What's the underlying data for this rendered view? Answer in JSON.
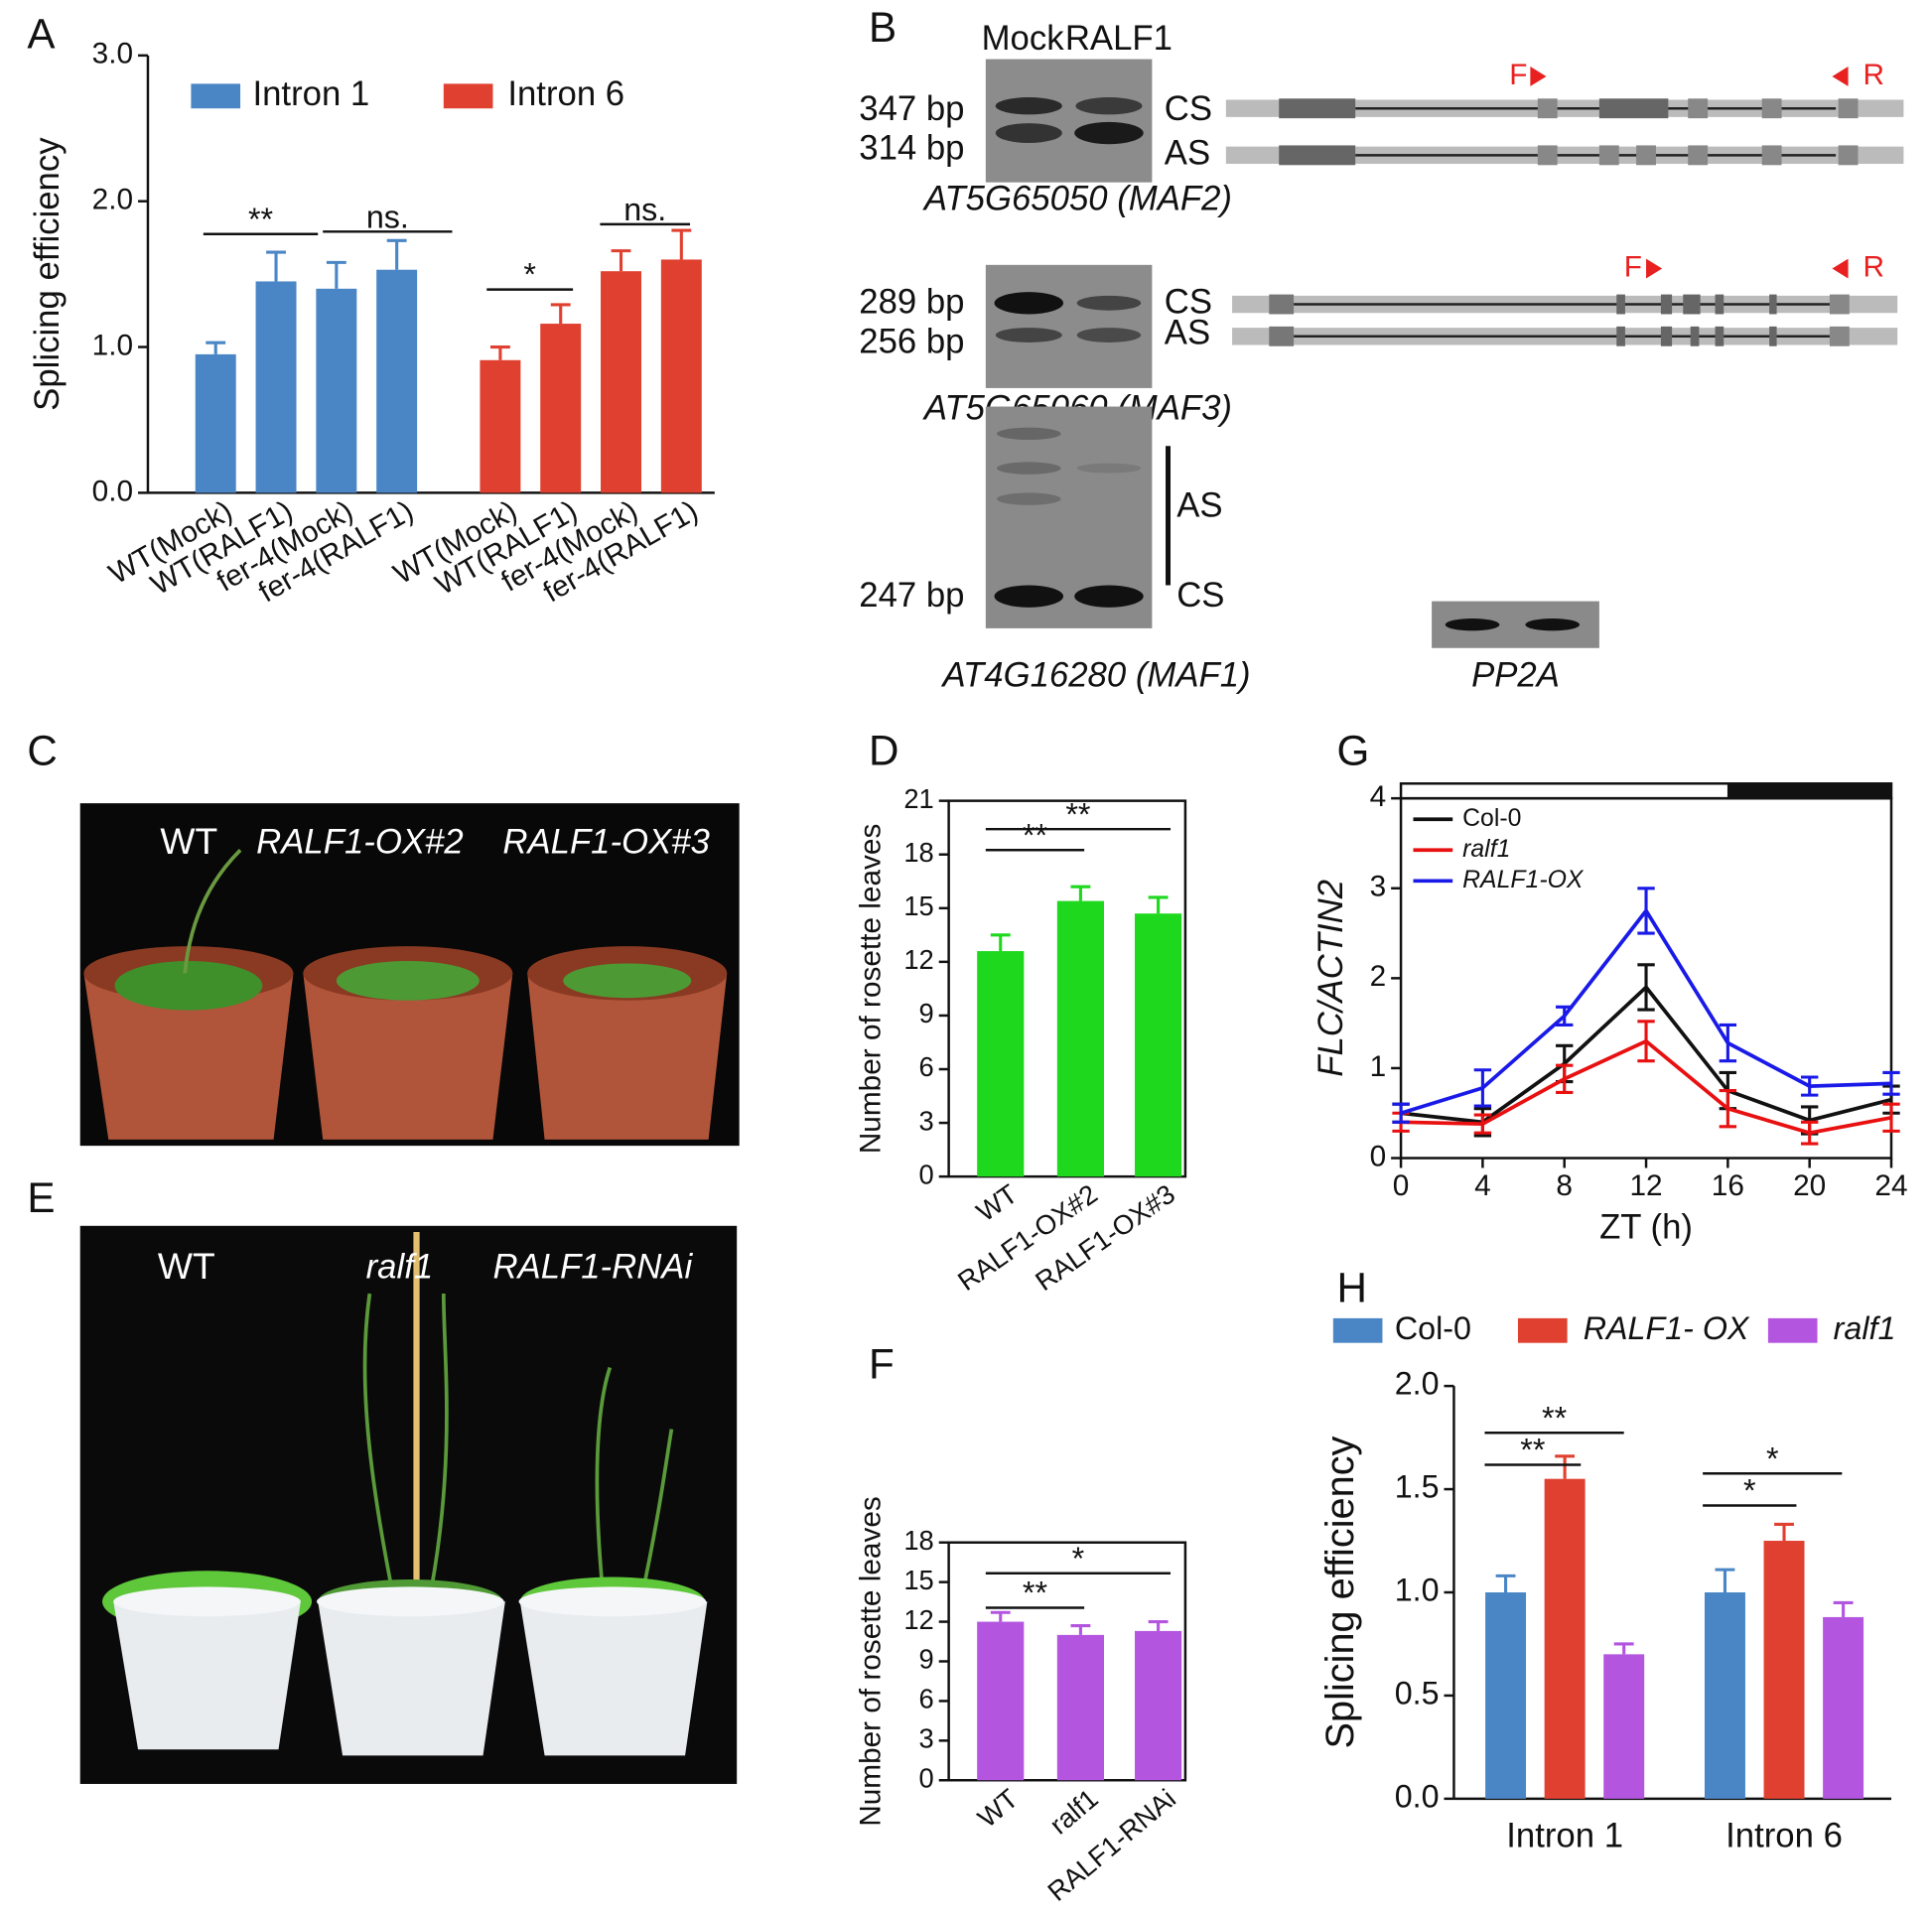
{
  "panel_labels": [
    "A",
    "B",
    "C",
    "D",
    "E",
    "F",
    "G",
    "H"
  ],
  "chart_data": [
    {
      "type": "bar",
      "categories": [
        "WT(Mock)",
        "WT(RALF1)",
        "fer-4(Mock)",
        "fer-4(RALF1)",
        "WT(Mock)",
        "WT(RALF1)",
        "fer-4(Mock)",
        "fer-4(RALF1)"
      ],
      "series": [
        {
          "name": "Intron 1",
          "color": "#4a86c6",
          "values": [
            0.95,
            1.45,
            1.4,
            1.53,
            null,
            null,
            null,
            null
          ],
          "errors": [
            0.08,
            0.2,
            0.18,
            0.2,
            null,
            null,
            null,
            null
          ]
        },
        {
          "name": "Intron 6",
          "color": "#e04030",
          "values": [
            null,
            null,
            null,
            null,
            0.91,
            1.16,
            1.52,
            1.6
          ],
          "errors": [
            null,
            null,
            null,
            null,
            0.09,
            0.13,
            0.14,
            0.2
          ]
        }
      ],
      "y_label": "Splicing efficiency",
      "ylim": [
        0,
        3
      ],
      "yticks": [
        {
          "value": 0,
          "label": "0.0"
        },
        {
          "value": 1,
          "label": "1.0"
        },
        {
          "value": 2,
          "label": "2.0"
        },
        {
          "value": 3,
          "label": "3.0"
        }
      ],
      "annotations": [
        "**",
        "ns.",
        "*",
        "ns."
      ]
    },
    {
      "type": "bar",
      "categories": [
        "WT",
        "RALF1-OX#2",
        "RALF1-OX#3"
      ],
      "values": [
        12.6,
        15.4,
        14.7
      ],
      "errors": [
        0.9,
        0.8,
        0.9
      ],
      "color": "#1ed81e",
      "y_label": "Number of rosette leaves",
      "ylim": [
        0,
        21
      ],
      "yticks": [
        0,
        3,
        6,
        9,
        12,
        15,
        18,
        21
      ],
      "annotations": [
        "**",
        "**"
      ]
    },
    {
      "type": "bar",
      "categories": [
        "WT",
        "ralf1",
        "RALF1-RNAi"
      ],
      "values": [
        12.0,
        11.0,
        11.3
      ],
      "errors": [
        0.7,
        0.7,
        0.7
      ],
      "color": "#b455e0",
      "y_label": "Number of rosette leaves",
      "ylim": [
        0,
        18
      ],
      "yticks": [
        0,
        3,
        6,
        9,
        12,
        15,
        18
      ],
      "annotations": [
        "*",
        "**"
      ]
    },
    {
      "type": "line",
      "x": [
        0,
        4,
        8,
        12,
        16,
        20,
        24
      ],
      "series": [
        {
          "name": "Col-0",
          "color": "#111111",
          "values": [
            0.5,
            0.4,
            1.05,
            1.9,
            0.75,
            0.42,
            0.65
          ],
          "errors": [
            0.1,
            0.15,
            0.2,
            0.25,
            0.2,
            0.15,
            0.15
          ]
        },
        {
          "name": "ralf1",
          "color": "#e81010",
          "values": [
            0.4,
            0.38,
            0.88,
            1.3,
            0.55,
            0.28,
            0.45
          ],
          "errors": [
            0.1,
            0.1,
            0.15,
            0.22,
            0.2,
            0.12,
            0.15
          ]
        },
        {
          "name": "RALF1-OX",
          "color": "#1a1ae8",
          "values": [
            0.5,
            0.78,
            1.58,
            2.75,
            1.28,
            0.8,
            0.83
          ],
          "errors": [
            0.1,
            0.2,
            0.1,
            0.25,
            0.2,
            0.1,
            0.12
          ]
        }
      ],
      "x_label": "ZT (h)",
      "y_label": "FLC/ACTIN2",
      "xlim": [
        0,
        24
      ],
      "xticks": [
        0,
        4,
        8,
        12,
        16,
        20,
        24
      ],
      "ylim": [
        0,
        4
      ],
      "yticks": [
        0,
        1,
        2,
        3,
        4
      ]
    },
    {
      "type": "bar",
      "categories": [
        "Intron 1",
        "Intron 6"
      ],
      "series": [
        {
          "name": "Col-0",
          "color": "#4a86c6",
          "values": [
            1.0,
            1.0
          ],
          "errors": [
            0.08,
            0.11
          ]
        },
        {
          "name": "RALF1- OX",
          "color": "#e04030",
          "values": [
            1.55,
            1.25
          ],
          "errors": [
            0.11,
            0.08
          ]
        },
        {
          "name": "ralf1",
          "color": "#b455e0",
          "values": [
            0.7,
            0.88
          ],
          "errors": [
            0.05,
            0.07
          ]
        }
      ],
      "y_label": "Splicing efficiency",
      "ylim": [
        0,
        2
      ],
      "yticks": [
        {
          "value": 0,
          "label": "0.0"
        },
        {
          "value": 0.5,
          "label": "0.5"
        },
        {
          "value": 1,
          "label": "1.0"
        },
        {
          "value": 1.5,
          "label": "1.5"
        },
        {
          "value": 2,
          "label": "2.0"
        }
      ],
      "annotations": [
        "**",
        "**",
        "*",
        "*"
      ]
    }
  ],
  "gels": {
    "lanes": [
      "Mock",
      "RALF1"
    ],
    "blots": [
      {
        "bands": [
          "347 bp",
          "314 bp"
        ],
        "forms": [
          "CS",
          "AS"
        ],
        "primers": [
          "F",
          "R"
        ],
        "gene": "AT5G65050 (MAF2)"
      },
      {
        "bands": [
          "289 bp",
          "256 bp"
        ],
        "forms": [
          "CS",
          "AS"
        ],
        "primers": [
          "F",
          "R"
        ],
        "gene": "AT5G65060 (MAF3)"
      },
      {
        "bands": [
          "247 bp"
        ],
        "forms": [
          "AS",
          "CS"
        ],
        "gene": "AT4G16280 (MAF1)"
      }
    ],
    "control": "PP2A"
  },
  "photos": {
    "C": [
      "WT",
      "RALF1-OX#2",
      "RALF1-OX#3"
    ],
    "E": [
      "WT",
      "ralf1",
      "RALF1-RNAi"
    ]
  }
}
